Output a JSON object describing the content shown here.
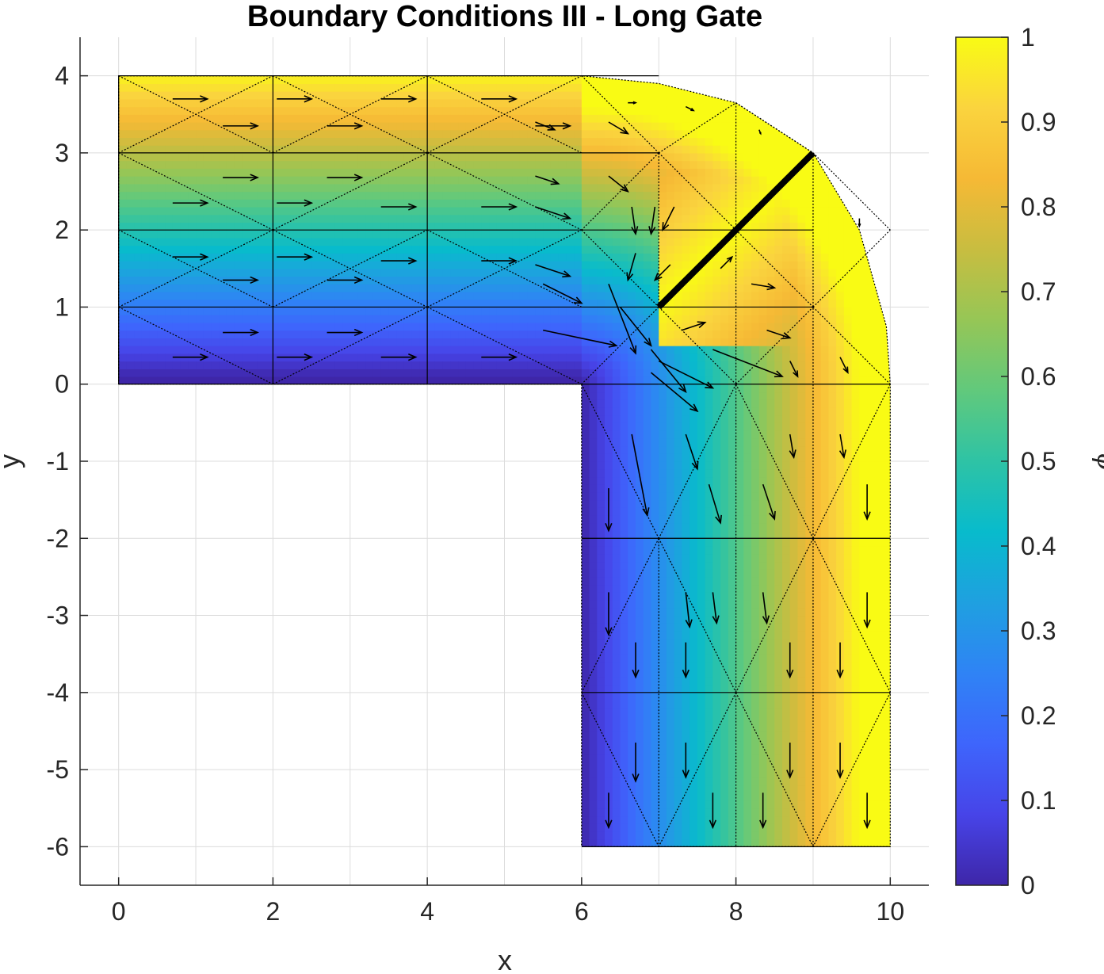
{
  "chart_data": {
    "type": "heatmap",
    "title": "Boundary Conditions III - Long Gate",
    "xlabel": "x",
    "ylabel": "y",
    "xlim": [
      -0.5,
      10.5
    ],
    "ylim": [
      -6.5,
      4.5
    ],
    "xticks": [
      "0",
      "2",
      "4",
      "6",
      "8",
      "10"
    ],
    "yticks": [
      "4",
      "3",
      "2",
      "1",
      "0",
      "-1",
      "-2",
      "-3",
      "-4",
      "-5",
      "-6"
    ],
    "grid": true,
    "colormap": "parula",
    "colorbar": {
      "label": "ψ",
      "range": [
        0,
        1
      ],
      "ticks": [
        "1",
        "0.9",
        "0.8",
        "0.7",
        "0.6",
        "0.5",
        "0.4",
        "0.3",
        "0.2",
        "0.1",
        "0"
      ]
    },
    "parula_stops": [
      "#3e26a8",
      "#4744e8",
      "#3e65fc",
      "#2f83f5",
      "#1fa0e0",
      "#08bbcc",
      "#2ec3a5",
      "#61c97c",
      "#96c656",
      "#c8bd40",
      "#f6b935",
      "#fad43e",
      "#f9fb14"
    ],
    "domain": {
      "outline": [
        [
          0,
          0
        ],
        [
          6,
          0
        ],
        [
          6,
          -6
        ],
        [
          10,
          -6
        ],
        [
          10,
          0
        ],
        [
          9.95,
          0.75
        ],
        [
          9.6,
          2
        ],
        [
          9,
          3
        ],
        [
          8,
          3.65
        ],
        [
          7,
          3.9
        ],
        [
          6,
          4
        ],
        [
          0,
          4
        ]
      ],
      "grid_x": [
        0,
        2,
        4,
        6,
        7,
        8,
        9,
        10
      ],
      "grid_y": [
        -6,
        -4,
        -2,
        0,
        1,
        2,
        3,
        4
      ]
    },
    "gate": {
      "from": [
        7,
        1
      ],
      "to": [
        9,
        3
      ]
    },
    "mesh_edges": [
      [
        [
          0,
          4
        ],
        [
          2,
          3
        ]
      ],
      [
        [
          2,
          3
        ],
        [
          4,
          4
        ]
      ],
      [
        [
          4,
          3
        ],
        [
          6,
          4
        ]
      ],
      [
        [
          0,
          3
        ],
        [
          2,
          4
        ]
      ],
      [
        [
          4,
          3
        ],
        [
          2,
          4
        ]
      ],
      [
        [
          6,
          3
        ],
        [
          4,
          4
        ]
      ],
      [
        [
          0,
          3
        ],
        [
          2,
          2
        ]
      ],
      [
        [
          2,
          2
        ],
        [
          4,
          3
        ]
      ],
      [
        [
          4,
          3
        ],
        [
          6,
          2
        ]
      ],
      [
        [
          0,
          1
        ],
        [
          2,
          2
        ]
      ],
      [
        [
          2,
          2
        ],
        [
          4,
          1
        ]
      ],
      [
        [
          4,
          1
        ],
        [
          6,
          2
        ]
      ],
      [
        [
          0,
          1
        ],
        [
          2,
          0
        ]
      ],
      [
        [
          2,
          0
        ],
        [
          4,
          1
        ]
      ],
      [
        [
          4,
          1
        ],
        [
          6,
          0
        ]
      ],
      [
        [
          2,
          1
        ],
        [
          0,
          2
        ]
      ],
      [
        [
          2,
          1
        ],
        [
          4,
          2
        ]
      ],
      [
        [
          6,
          1
        ],
        [
          4,
          2
        ]
      ],
      [
        [
          6,
          4
        ],
        [
          7,
          3
        ]
      ],
      [
        [
          7,
          3
        ],
        [
          6,
          2
        ]
      ],
      [
        [
          6,
          2
        ],
        [
          7,
          1
        ]
      ],
      [
        [
          7,
          1
        ],
        [
          6,
          0
        ]
      ],
      [
        [
          7,
          3
        ],
        [
          8,
          3.65
        ]
      ],
      [
        [
          7,
          3
        ],
        [
          8,
          2
        ]
      ],
      [
        [
          8,
          3.65
        ],
        [
          9,
          3
        ]
      ],
      [
        [
          8,
          2
        ],
        [
          9,
          1
        ]
      ],
      [
        [
          9,
          3
        ],
        [
          10,
          2
        ]
      ],
      [
        [
          9,
          1
        ],
        [
          10,
          2
        ]
      ],
      [
        [
          9,
          1
        ],
        [
          10,
          0
        ]
      ],
      [
        [
          7,
          1
        ],
        [
          8,
          0
        ]
      ],
      [
        [
          8,
          0
        ],
        [
          9,
          1
        ]
      ],
      [
        [
          6,
          0
        ],
        [
          7,
          -2
        ]
      ],
      [
        [
          7,
          -2
        ],
        [
          6,
          -4
        ]
      ],
      [
        [
          6,
          -4
        ],
        [
          7,
          -6
        ]
      ],
      [
        [
          8,
          0
        ],
        [
          7,
          -2
        ]
      ],
      [
        [
          7,
          -2
        ],
        [
          8,
          -4
        ]
      ],
      [
        [
          8,
          -4
        ],
        [
          7,
          -6
        ]
      ],
      [
        [
          8,
          0
        ],
        [
          9,
          -2
        ]
      ],
      [
        [
          9,
          -2
        ],
        [
          8,
          -4
        ]
      ],
      [
        [
          8,
          -4
        ],
        [
          9,
          -6
        ]
      ],
      [
        [
          10,
          0
        ],
        [
          9,
          -2
        ]
      ],
      [
        [
          9,
          -2
        ],
        [
          10,
          -4
        ]
      ],
      [
        [
          10,
          -4
        ],
        [
          9,
          -6
        ]
      ],
      [
        [
          7,
          3
        ],
        [
          7,
          1
        ]
      ],
      [
        [
          8,
          3.65
        ],
        [
          8,
          -6
        ]
      ],
      [
        [
          9,
          3
        ],
        [
          9,
          -6
        ]
      ],
      [
        [
          7,
          -2
        ],
        [
          7,
          -6
        ]
      ],
      [
        [
          6,
          0
        ],
        [
          6,
          -6
        ]
      ]
    ],
    "vectors": [
      [
        0.7,
        3.7,
        0.45,
        0
      ],
      [
        1.35,
        3.35,
        0.45,
        0
      ],
      [
        2.7,
        3.35,
        0.45,
        0
      ],
      [
        3.4,
        3.7,
        0.45,
        0
      ],
      [
        4.7,
        3.7,
        0.45,
        0
      ],
      [
        5.4,
        3.35,
        0.45,
        0
      ],
      [
        2.05,
        3.7,
        0.45,
        0
      ],
      [
        0.7,
        2.35,
        0.45,
        0
      ],
      [
        1.35,
        2.68,
        0.45,
        0
      ],
      [
        2.7,
        2.68,
        0.45,
        0
      ],
      [
        3.4,
        2.3,
        0.45,
        0
      ],
      [
        4.7,
        2.3,
        0.45,
        0
      ],
      [
        2.05,
        2.35,
        0.45,
        0
      ],
      [
        0.7,
        1.65,
        0.45,
        0
      ],
      [
        1.35,
        1.35,
        0.45,
        0
      ],
      [
        2.7,
        1.35,
        0.45,
        0
      ],
      [
        3.4,
        1.6,
        0.45,
        0
      ],
      [
        2.05,
        1.65,
        0.45,
        0
      ],
      [
        4.7,
        1.6,
        0.45,
        0
      ],
      [
        0.7,
        0.35,
        0.45,
        0
      ],
      [
        1.35,
        0.67,
        0.45,
        0
      ],
      [
        2.7,
        0.67,
        0.45,
        0
      ],
      [
        3.4,
        0.35,
        0.45,
        0
      ],
      [
        4.7,
        0.35,
        0.45,
        0
      ],
      [
        2.05,
        0.35,
        0.45,
        0
      ],
      [
        5.4,
        3.4,
        0.25,
        -0.1
      ],
      [
        5.4,
        2.7,
        0.3,
        -0.1
      ],
      [
        5.4,
        2.3,
        0.45,
        -0.15
      ],
      [
        5.4,
        1.55,
        0.45,
        -0.15
      ],
      [
        5.5,
        1.3,
        0.5,
        -0.25
      ],
      [
        5.5,
        0.7,
        0.95,
        -0.2
      ],
      [
        6.35,
        3.4,
        0.25,
        -0.15
      ],
      [
        6.6,
        3.65,
        0.1,
        0
      ],
      [
        7.35,
        3.6,
        0.1,
        -0.05
      ],
      [
        8.3,
        3.3,
        0.02,
        -0.05
      ],
      [
        6.35,
        2.7,
        0.25,
        -0.2
      ],
      [
        6.65,
        2.3,
        0.05,
        -0.35
      ],
      [
        6.95,
        2.3,
        -0.05,
        -0.35
      ],
      [
        7.2,
        2.3,
        -0.15,
        -0.3
      ],
      [
        6.7,
        1.7,
        -0.1,
        -0.35
      ],
      [
        6.35,
        1.3,
        0.35,
        -0.9
      ],
      [
        6.5,
        1.0,
        0.4,
        -0.5
      ],
      [
        7.15,
        1.55,
        -0.2,
        -0.2
      ],
      [
        7.8,
        1.5,
        0.15,
        0.15
      ],
      [
        8.2,
        1.3,
        0.3,
        -0.05
      ],
      [
        7.0,
        0.3,
        0.7,
        -0.35
      ],
      [
        8.4,
        0.7,
        0.3,
        -0.1
      ],
      [
        7.3,
        0.7,
        0.3,
        0.1
      ],
      [
        6.9,
        0.45,
        0.45,
        -0.55
      ],
      [
        6.9,
        0.15,
        0.6,
        -0.5
      ],
      [
        7.7,
        0.45,
        0.9,
        -0.35
      ],
      [
        8.7,
        0.3,
        0.1,
        -0.2
      ],
      [
        9.35,
        0.35,
        0.1,
        -0.2
      ],
      [
        9.6,
        2.15,
        0,
        -0.1
      ],
      [
        6.65,
        -0.65,
        0.2,
        -1.05
      ],
      [
        7.35,
        -0.65,
        0.15,
        -0.45
      ],
      [
        7.65,
        -1.3,
        0.15,
        -0.5
      ],
      [
        8.35,
        -1.3,
        0.15,
        -0.45
      ],
      [
        8.7,
        -0.65,
        0.05,
        -0.3
      ],
      [
        9.35,
        -0.65,
        0.05,
        -0.3
      ],
      [
        9.7,
        -1.3,
        0,
        -0.45
      ],
      [
        6.35,
        -1.35,
        0,
        -0.55
      ],
      [
        6.35,
        -2.7,
        0,
        -0.55
      ],
      [
        6.7,
        -3.35,
        0,
        -0.45
      ],
      [
        7.35,
        -2.7,
        0.05,
        -0.45
      ],
      [
        7.35,
        -3.35,
        0,
        -0.45
      ],
      [
        7.7,
        -2.7,
        0.05,
        -0.4
      ],
      [
        8.35,
        -2.7,
        0.05,
        -0.4
      ],
      [
        8.7,
        -3.35,
        0,
        -0.45
      ],
      [
        9.35,
        -3.35,
        0,
        -0.45
      ],
      [
        9.7,
        -2.7,
        0,
        -0.45
      ],
      [
        6.35,
        -5.3,
        0,
        -0.45
      ],
      [
        6.7,
        -4.65,
        0,
        -0.5
      ],
      [
        7.35,
        -4.65,
        0,
        -0.45
      ],
      [
        7.7,
        -5.3,
        0,
        -0.45
      ],
      [
        8.35,
        -5.3,
        0,
        -0.45
      ],
      [
        8.7,
        -4.65,
        0,
        -0.45
      ],
      [
        9.35,
        -4.65,
        0,
        -0.45
      ],
      [
        9.7,
        -5.3,
        0,
        -0.45
      ]
    ]
  }
}
